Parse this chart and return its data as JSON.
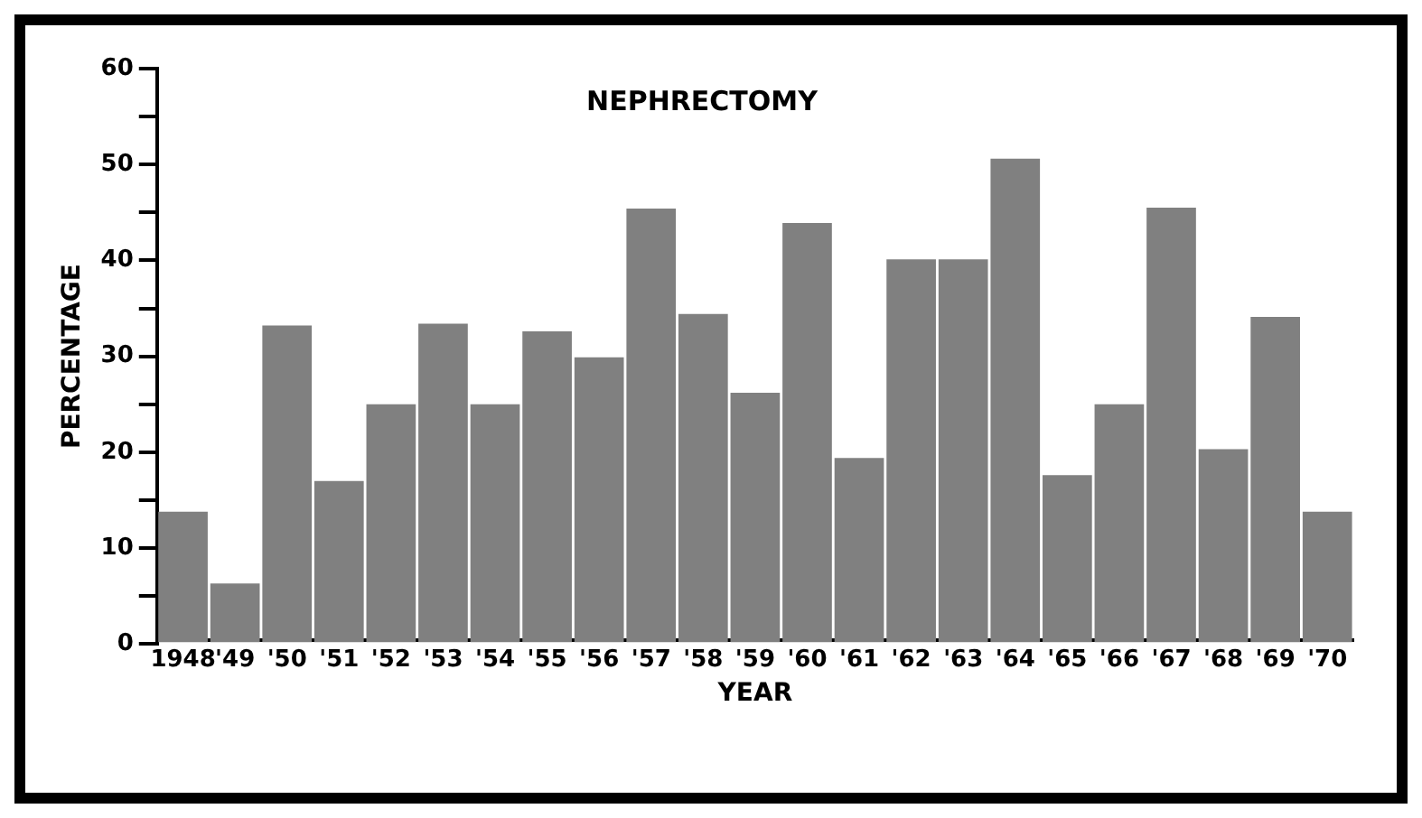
{
  "chart_data": {
    "type": "bar",
    "title": "NEPHRECTOMY",
    "xlabel": "YEAR",
    "ylabel": "PERCENTAGE",
    "categories": [
      "1948",
      "'49",
      "'50",
      "'51",
      "'52",
      "'53",
      "'54",
      "'55",
      "'56",
      "'57",
      "'58",
      "'59",
      "'60",
      "'61",
      "'62",
      "'63",
      "'64",
      "'65",
      "'66",
      "'67",
      "'68",
      "'69",
      "'70"
    ],
    "values": [
      13.8,
      6.3,
      33.2,
      17,
      25,
      33.4,
      25,
      32.6,
      29.9,
      45.4,
      34.4,
      26.2,
      43.9,
      19.4,
      40.1,
      40.1,
      50.6,
      17.6,
      25,
      45.5,
      20.3,
      34.1,
      13.8
    ],
    "color": "#808080",
    "ylim": [
      0,
      60
    ],
    "yticks": [
      0,
      {
        "value": 5,
        "label": null
      },
      10,
      {
        "value": 15,
        "label": null
      },
      20,
      {
        "value": 25,
        "label": null
      },
      30,
      {
        "value": 35,
        "label": null
      },
      40,
      {
        "value": 45,
        "label": null
      },
      50,
      {
        "value": 55,
        "label": null
      },
      60
    ],
    "grid": false,
    "legend": false
  }
}
